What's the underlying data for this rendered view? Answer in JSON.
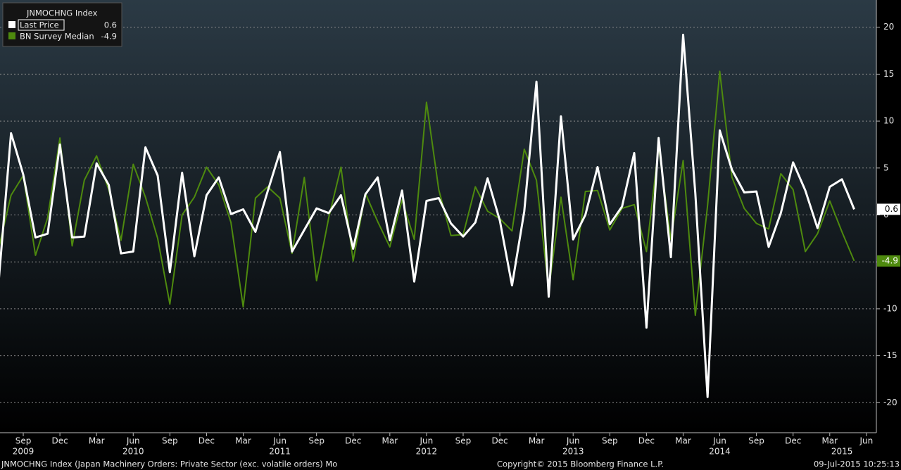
{
  "chart_data": {
    "type": "line",
    "title": "JNMOCHNG Index",
    "x": [
      "2009-07",
      "2009-08",
      "2009-09",
      "2009-10",
      "2009-11",
      "2009-12",
      "2010-01",
      "2010-02",
      "2010-03",
      "2010-04",
      "2010-05",
      "2010-06",
      "2010-07",
      "2010-08",
      "2010-09",
      "2010-10",
      "2010-11",
      "2010-12",
      "2011-01",
      "2011-02",
      "2011-03",
      "2011-04",
      "2011-05",
      "2011-06",
      "2011-07",
      "2011-08",
      "2011-09",
      "2011-10",
      "2011-11",
      "2011-12",
      "2012-01",
      "2012-02",
      "2012-03",
      "2012-04",
      "2012-05",
      "2012-06",
      "2012-07",
      "2012-08",
      "2012-09",
      "2012-10",
      "2012-11",
      "2012-12",
      "2013-01",
      "2013-02",
      "2013-03",
      "2013-04",
      "2013-05",
      "2013-06",
      "2013-07",
      "2013-08",
      "2013-09",
      "2013-10",
      "2013-11",
      "2013-12",
      "2014-01",
      "2014-02",
      "2014-03",
      "2014-04",
      "2014-05",
      "2014-06",
      "2014-07",
      "2014-08",
      "2014-09",
      "2014-10",
      "2014-11",
      "2014-12",
      "2015-01",
      "2015-02",
      "2015-03",
      "2015-04",
      "2015-05"
    ],
    "series": [
      {
        "name": "Last Price",
        "color": "#ffffff",
        "values": [
          -6.9,
          8.7,
          4.3,
          -2.4,
          -2.0,
          7.5,
          -2.4,
          -2.3,
          5.5,
          3.2,
          -4.1,
          -3.9,
          7.2,
          4.2,
          -6.1,
          4.5,
          -4.4,
          2.1,
          4.0,
          0.1,
          0.6,
          -1.8,
          2.5,
          6.7,
          -3.9,
          -1.6,
          0.7,
          0.2,
          2.1,
          -3.6,
          2.2,
          4.0,
          -2.7,
          2.6,
          -7.1,
          1.5,
          1.8,
          -0.9,
          -2.3,
          -0.8,
          3.9,
          -0.6,
          -7.5,
          0.4,
          14.2,
          -8.7,
          10.5,
          -2.6,
          0.0,
          5.1,
          -1.0,
          0.9,
          6.6,
          -12.0,
          8.2,
          -4.5,
          19.2,
          2.3,
          -19.4,
          9.0,
          4.8,
          2.4,
          2.5,
          -3.4,
          0.2,
          5.6,
          2.6,
          -1.4,
          3.0,
          3.8,
          0.6
        ]
      },
      {
        "name": "BN Survey Median",
        "color": "#4e8a0e",
        "values": [
          -3.5,
          2.1,
          4.2,
          -4.3,
          -0.3,
          8.2,
          -3.3,
          3.7,
          6.3,
          2.7,
          -2.7,
          5.4,
          1.9,
          -2.5,
          -9.5,
          0.0,
          1.9,
          5.1,
          3.2,
          -0.8,
          -9.8,
          1.8,
          3.0,
          1.8,
          -4.1,
          4.0,
          -7.0,
          -0.3,
          5.1,
          -4.9,
          2.3,
          -0.7,
          -3.4,
          1.6,
          -2.6,
          12.0,
          2.7,
          -2.2,
          -2.1,
          3.0,
          0.4,
          -0.4,
          -1.7,
          7.0,
          3.7,
          -8.0,
          1.9,
          -6.9,
          2.5,
          2.6,
          -1.6,
          0.7,
          1.1,
          -3.9,
          7.3,
          -2.6,
          5.8,
          -10.7,
          1.0,
          15.3,
          4.0,
          0.7,
          -0.9,
          -1.5,
          4.4,
          2.7,
          -3.9,
          -2.0,
          1.5,
          -1.8,
          -4.9
        ]
      }
    ],
    "ylim": [
      -23.2,
      22.9
    ],
    "yticks": [
      20,
      15,
      10,
      5,
      0,
      -5,
      -10,
      -15,
      -20
    ],
    "grid": true,
    "xticks": [
      {
        "value": "2009-09",
        "label": "Sep"
      },
      {
        "value": "2009-12",
        "label": "Dec"
      },
      {
        "value": "2010-03",
        "label": "Mar"
      },
      {
        "value": "2010-06",
        "label": "Jun"
      },
      {
        "value": "2010-09",
        "label": "Sep"
      },
      {
        "value": "2010-12",
        "label": "Dec"
      },
      {
        "value": "2011-03",
        "label": "Mar"
      },
      {
        "value": "2011-06",
        "label": "Jun"
      },
      {
        "value": "2011-09",
        "label": "Sep"
      },
      {
        "value": "2011-12",
        "label": "Dec"
      },
      {
        "value": "2012-03",
        "label": "Mar"
      },
      {
        "value": "2012-06",
        "label": "Jun"
      },
      {
        "value": "2012-09",
        "label": "Sep"
      },
      {
        "value": "2012-12",
        "label": "Dec"
      },
      {
        "value": "2013-03",
        "label": "Mar"
      },
      {
        "value": "2013-06",
        "label": "Jun"
      },
      {
        "value": "2013-09",
        "label": "Sep"
      },
      {
        "value": "2013-12",
        "label": "Dec"
      },
      {
        "value": "2014-03",
        "label": "Mar"
      },
      {
        "value": "2014-06",
        "label": "Jun"
      },
      {
        "value": "2014-09",
        "label": "Sep"
      },
      {
        "value": "2014-12",
        "label": "Dec"
      },
      {
        "value": "2015-03",
        "label": "Mar"
      },
      {
        "value": "2015-06",
        "label": "Jun"
      }
    ],
    "year_labels": [
      {
        "value": "2009-09",
        "label": "2009"
      },
      {
        "value": "2010-06",
        "label": "2010"
      },
      {
        "value": "2011-06",
        "label": "2011"
      },
      {
        "value": "2012-06",
        "label": "2012"
      },
      {
        "value": "2013-06",
        "label": "2013"
      },
      {
        "value": "2014-06",
        "label": "2014"
      },
      {
        "value": "2015-04",
        "label": "2015"
      }
    ],
    "legend_position": "upper left"
  },
  "footer": {
    "description": "JNMOCHNG Index (Japan Machinery Orders: Private Sector (exc. volatile orders) Mo",
    "copyright": "Copyright© 2015 Bloomberg Finance L.P.",
    "timestamp": "09-Jul-2015 10:25:13"
  }
}
